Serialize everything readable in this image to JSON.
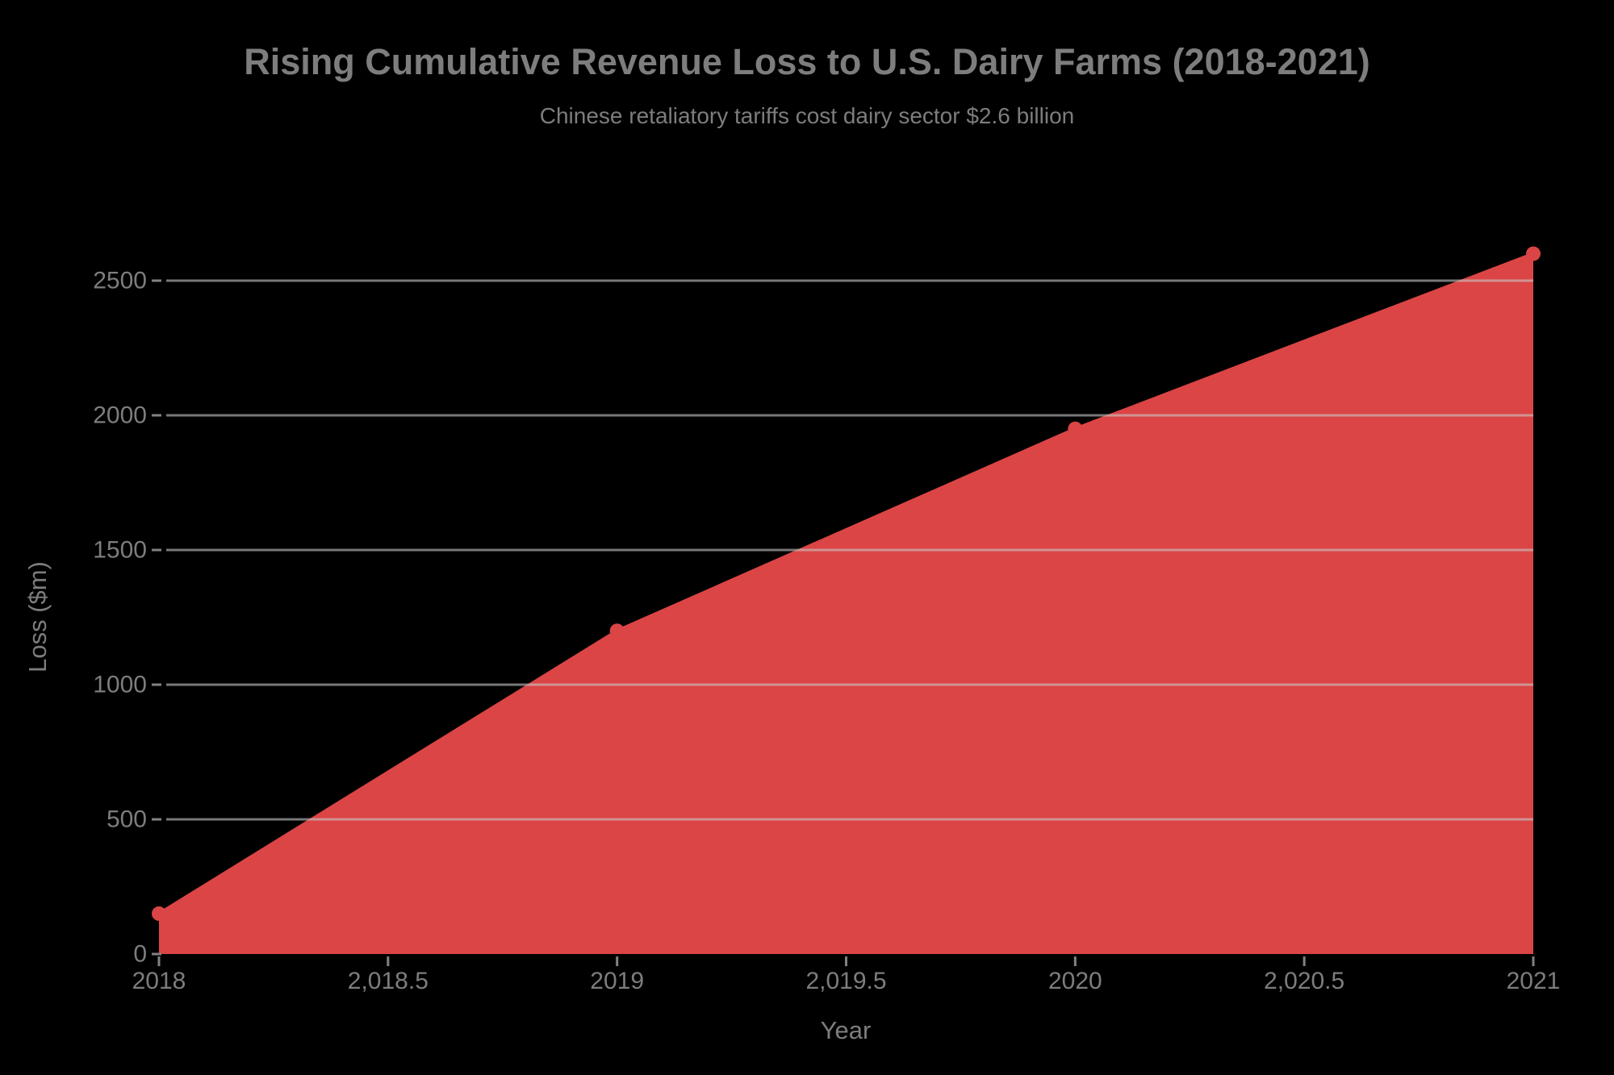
{
  "chart_data": {
    "type": "area",
    "title": "Rising Cumulative Revenue Loss to U.S. Dairy Farms (2018-2021)",
    "subtitle": "Chinese retaliatory tariffs cost dairy sector $2.6 billion",
    "xlabel": "Year",
    "ylabel": "Loss ($m)",
    "x": [
      2018,
      2019,
      2020,
      2021
    ],
    "values": [
      150,
      1200,
      1950,
      2600
    ],
    "x_ticks": [
      2018,
      2018.5,
      2019,
      2019.5,
      2020,
      2020.5,
      2021
    ],
    "x_tick_labels": [
      "2018",
      "2,018.5",
      "2019",
      "2,019.5",
      "2020",
      "2,020.5",
      "2021"
    ],
    "y_ticks": [
      0,
      500,
      1000,
      1500,
      2000,
      2500
    ],
    "y_tick_labels": [
      "0",
      "500",
      "1000",
      "1500",
      "2000",
      "2500"
    ],
    "xlim": [
      2018,
      2021
    ],
    "ylim": [
      0,
      2600
    ],
    "grid": true,
    "legend": false,
    "markers": true
  },
  "colors": {
    "background": "#000000",
    "area": "#db4545",
    "grid": "#828282",
    "text": "#7d7d7d"
  }
}
